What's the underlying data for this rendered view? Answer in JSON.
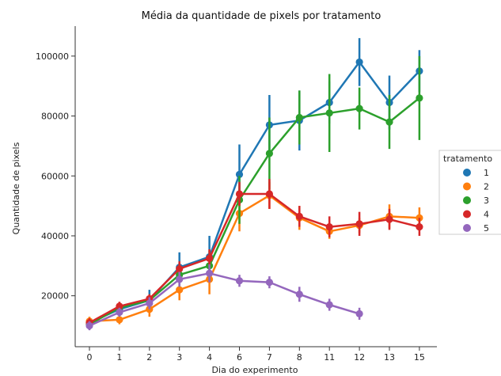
{
  "chart_data": {
    "type": "line",
    "title": "Média da quantidade de pixels por tratamento",
    "xlabel": "Dia do experimento",
    "ylabel": "Quantidade de pixels",
    "categories": [
      "0",
      "1",
      "2",
      "3",
      "4",
      "6",
      "7",
      "8",
      "11",
      "12",
      "13",
      "15"
    ],
    "ylim": [
      3000,
      110000
    ],
    "yticks": [
      20000,
      40000,
      60000,
      80000,
      100000
    ],
    "grid": false,
    "legend": {
      "title": "tratamento",
      "placement": "right"
    },
    "series": [
      {
        "name": "1",
        "color": "#1f77b4",
        "values": [
          11000,
          15500,
          18500,
          29500,
          33000,
          60500,
          77000,
          78500,
          84500,
          98000,
          84500,
          95000
        ],
        "err": [
          1500,
          1500,
          3500,
          5000,
          7000,
          10000,
          10000,
          10000,
          7000,
          8000,
          9000,
          7000
        ]
      },
      {
        "name": "2",
        "color": "#ff7f0e",
        "values": [
          11500,
          12000,
          15500,
          22000,
          25500,
          47500,
          53500,
          46000,
          41500,
          43500,
          46500,
          46000
        ],
        "err": [
          1500,
          1500,
          2500,
          3500,
          5000,
          6000,
          4500,
          4000,
          2500,
          2500,
          4000,
          3500
        ]
      },
      {
        "name": "3",
        "color": "#2ca02c",
        "values": [
          10500,
          16000,
          18500,
          27000,
          30000,
          52000,
          67500,
          79500,
          81000,
          82500,
          78000,
          86000
        ],
        "err": [
          1500,
          1500,
          2000,
          4000,
          5000,
          8000,
          12000,
          9000,
          13000,
          7000,
          9000,
          14000
        ]
      },
      {
        "name": "4",
        "color": "#d62728",
        "values": [
          11000,
          16500,
          19000,
          29000,
          32500,
          54000,
          54000,
          46500,
          43000,
          44000,
          45500,
          43000
        ],
        "err": [
          1500,
          1500,
          1500,
          2500,
          3000,
          4000,
          5000,
          3500,
          3500,
          4000,
          3500,
          3000
        ]
      },
      {
        "name": "5",
        "color": "#9467bd",
        "values": [
          10000,
          14500,
          17500,
          25500,
          27500,
          25000,
          24500,
          20500,
          17000,
          14000,
          null,
          null
        ],
        "err": [
          1500,
          1500,
          2000,
          2500,
          3000,
          2000,
          2000,
          2500,
          2000,
          2000,
          null,
          null
        ]
      }
    ]
  }
}
